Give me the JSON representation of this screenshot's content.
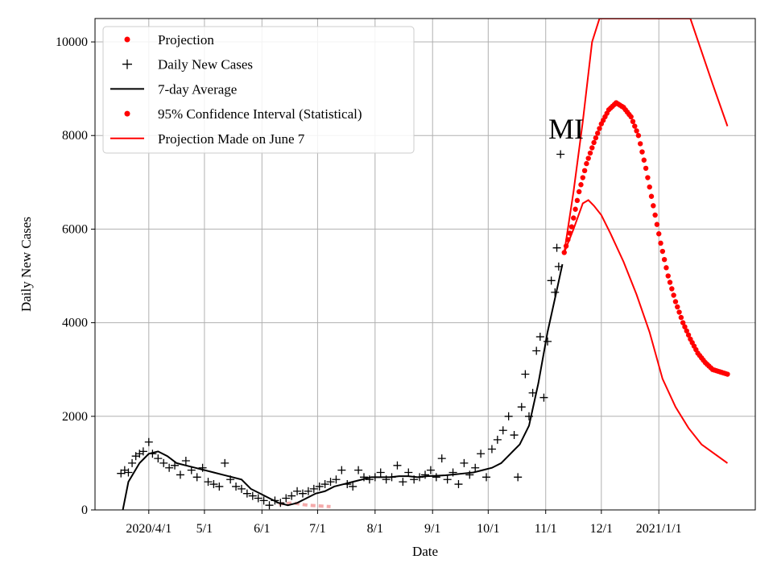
{
  "chart_data": {
    "type": "line",
    "title": "",
    "annotation": "MI",
    "xlabel": "Date",
    "ylabel": "Daily New Cases",
    "x_tick_labels": [
      "2020/4/1",
      "5/1",
      "6/1",
      "7/1",
      "8/1",
      "9/1",
      "10/1",
      "11/1",
      "12/1",
      "2021/1/1"
    ],
    "y_tick_labels": [
      "0",
      "2000",
      "4000",
      "6000",
      "8000",
      "10000"
    ],
    "xlim": [
      "2020-03-03",
      "2021-02-22"
    ],
    "ylim": [
      0,
      10500
    ],
    "grid": true,
    "legend_position": "top-left",
    "legend": [
      {
        "label": "Projection",
        "style": "red-dot"
      },
      {
        "label": "Daily New Cases",
        "style": "black-plus"
      },
      {
        "label": "7-day Average",
        "style": "black-line"
      },
      {
        "label": "95% Confidence Interval (Statistical)",
        "style": "red-dot"
      },
      {
        "label": "Projection Made on June 7",
        "style": "red-line"
      }
    ],
    "colors": {
      "projection": "#ff0000",
      "cases": "#000000",
      "average": "#000000",
      "june7": "#ff0000",
      "june7_faint": "#f4aaaa"
    },
    "series": [
      {
        "name": "Daily New Cases",
        "x": [
          "2020-03-17",
          "2020-03-19",
          "2020-03-21",
          "2020-03-23",
          "2020-03-25",
          "2020-03-27",
          "2020-03-29",
          "2020-04-01",
          "2020-04-03",
          "2020-04-06",
          "2020-04-09",
          "2020-04-12",
          "2020-04-15",
          "2020-04-18",
          "2020-04-21",
          "2020-04-24",
          "2020-04-27",
          "2020-04-30",
          "2020-05-03",
          "2020-05-06",
          "2020-05-09",
          "2020-05-12",
          "2020-05-15",
          "2020-05-18",
          "2020-05-21",
          "2020-05-24",
          "2020-05-27",
          "2020-05-30",
          "2020-06-02",
          "2020-06-05",
          "2020-06-08",
          "2020-06-11",
          "2020-06-14",
          "2020-06-17",
          "2020-06-20",
          "2020-06-23",
          "2020-06-26",
          "2020-06-29",
          "2020-07-02",
          "2020-07-05",
          "2020-07-08",
          "2020-07-11",
          "2020-07-14",
          "2020-07-17",
          "2020-07-20",
          "2020-07-23",
          "2020-07-26",
          "2020-07-29",
          "2020-08-01",
          "2020-08-04",
          "2020-08-07",
          "2020-08-10",
          "2020-08-13",
          "2020-08-16",
          "2020-08-19",
          "2020-08-22",
          "2020-08-25",
          "2020-08-28",
          "2020-08-31",
          "2020-09-03",
          "2020-09-06",
          "2020-09-09",
          "2020-09-12",
          "2020-09-15",
          "2020-09-18",
          "2020-09-21",
          "2020-09-24",
          "2020-09-27",
          "2020-09-30",
          "2020-10-03",
          "2020-10-06",
          "2020-10-09",
          "2020-10-12",
          "2020-10-15",
          "2020-10-17",
          "2020-10-19",
          "2020-10-21",
          "2020-10-23",
          "2020-10-25",
          "2020-10-27",
          "2020-10-29",
          "2020-10-31",
          "2020-11-02",
          "2020-11-04",
          "2020-11-06",
          "2020-11-07",
          "2020-11-08",
          "2020-11-09"
        ],
        "values": [
          780,
          850,
          800,
          1000,
          1150,
          1200,
          1250,
          1450,
          1200,
          1100,
          1000,
          900,
          950,
          750,
          1050,
          850,
          700,
          900,
          600,
          550,
          500,
          1000,
          650,
          500,
          450,
          350,
          300,
          250,
          200,
          100,
          200,
          150,
          250,
          300,
          400,
          350,
          400,
          450,
          500,
          550,
          600,
          650,
          850,
          550,
          500,
          850,
          700,
          650,
          700,
          800,
          650,
          700,
          950,
          600,
          800,
          650,
          700,
          750,
          850,
          700,
          1100,
          650,
          800,
          550,
          1000,
          750,
          900,
          1200,
          700,
          1300,
          1500,
          1700,
          2000,
          1600,
          700,
          2200,
          2900,
          2000,
          2500,
          3400,
          3700,
          2400,
          3600,
          4900,
          4650,
          5600,
          5200,
          7600
        ]
      },
      {
        "name": "7-day Average",
        "x": [
          "2020-03-18",
          "2020-03-21",
          "2020-03-24",
          "2020-03-27",
          "2020-04-01",
          "2020-04-06",
          "2020-04-11",
          "2020-04-16",
          "2020-04-21",
          "2020-04-26",
          "2020-05-01",
          "2020-05-06",
          "2020-05-11",
          "2020-05-16",
          "2020-05-21",
          "2020-05-26",
          "2020-05-31",
          "2020-06-05",
          "2020-06-10",
          "2020-06-15",
          "2020-06-20",
          "2020-06-25",
          "2020-06-30",
          "2020-07-05",
          "2020-07-10",
          "2020-07-15",
          "2020-07-20",
          "2020-07-25",
          "2020-07-30",
          "2020-08-04",
          "2020-08-09",
          "2020-08-14",
          "2020-08-19",
          "2020-08-24",
          "2020-08-29",
          "2020-09-03",
          "2020-09-08",
          "2020-09-13",
          "2020-09-18",
          "2020-09-23",
          "2020-09-28",
          "2020-10-03",
          "2020-10-08",
          "2020-10-13",
          "2020-10-18",
          "2020-10-23",
          "2020-10-28",
          "2020-11-02",
          "2020-11-07",
          "2020-11-10"
        ],
        "values": [
          0,
          600,
          800,
          1000,
          1200,
          1250,
          1150,
          1000,
          950,
          900,
          850,
          800,
          750,
          700,
          650,
          450,
          350,
          250,
          150,
          100,
          150,
          250,
          350,
          400,
          500,
          550,
          600,
          650,
          700,
          700,
          700,
          720,
          720,
          700,
          720,
          730,
          740,
          760,
          780,
          800,
          850,
          900,
          1000,
          1200,
          1400,
          1800,
          2700,
          3800,
          4700,
          5250
        ]
      },
      {
        "name": "Projection",
        "x": [
          "2020-11-11",
          "2020-11-15",
          "2020-11-19",
          "2020-11-23",
          "2020-11-27",
          "2020-12-01",
          "2020-12-05",
          "2020-12-09",
          "2020-12-13",
          "2020-12-17",
          "2020-12-21",
          "2020-12-25",
          "2020-12-29",
          "2021-01-02",
          "2021-01-06",
          "2021-01-10",
          "2021-01-14",
          "2021-01-18",
          "2021-01-22",
          "2021-01-26",
          "2021-01-30",
          "2021-02-03",
          "2021-02-07"
        ],
        "values": [
          5500,
          6050,
          6800,
          7400,
          7850,
          8250,
          8550,
          8700,
          8600,
          8400,
          8000,
          7300,
          6500,
          5700,
          5000,
          4450,
          4000,
          3650,
          3350,
          3150,
          3000,
          2950,
          2900
        ]
      },
      {
        "name": "95% Confidence Interval (Statistical) upper",
        "x": [
          "2020-11-11",
          "2020-11-16",
          "2020-11-21",
          "2020-11-26",
          "2020-11-30",
          "2021-01-18",
          "2021-01-24",
          "2021-01-30",
          "2021-02-07"
        ],
        "values": [
          5500,
          6800,
          8300,
          10000,
          10500,
          10500,
          9800,
          9100,
          8200
        ]
      },
      {
        "name": "95% Confidence Interval (Statistical) lower",
        "x": [
          "2020-11-11",
          "2020-11-16",
          "2020-11-21",
          "2020-11-24",
          "2020-11-27",
          "2020-12-01",
          "2020-12-06",
          "2020-12-13",
          "2020-12-20",
          "2020-12-27",
          "2021-01-03",
          "2021-01-10",
          "2021-01-17",
          "2021-01-24",
          "2021-01-31",
          "2021-02-07"
        ],
        "values": [
          5500,
          6000,
          6550,
          6620,
          6500,
          6300,
          5900,
          5300,
          4600,
          3800,
          2800,
          2200,
          1750,
          1400,
          1200,
          1000
        ]
      },
      {
        "name": "Projection Made on June 7",
        "x": [
          "2020-06-10",
          "2020-06-14",
          "2020-06-18",
          "2020-06-22",
          "2020-06-26",
          "2020-06-30",
          "2020-07-04",
          "2020-07-08"
        ],
        "values": [
          130,
          140,
          150,
          120,
          100,
          90,
          80,
          70
        ]
      }
    ]
  }
}
